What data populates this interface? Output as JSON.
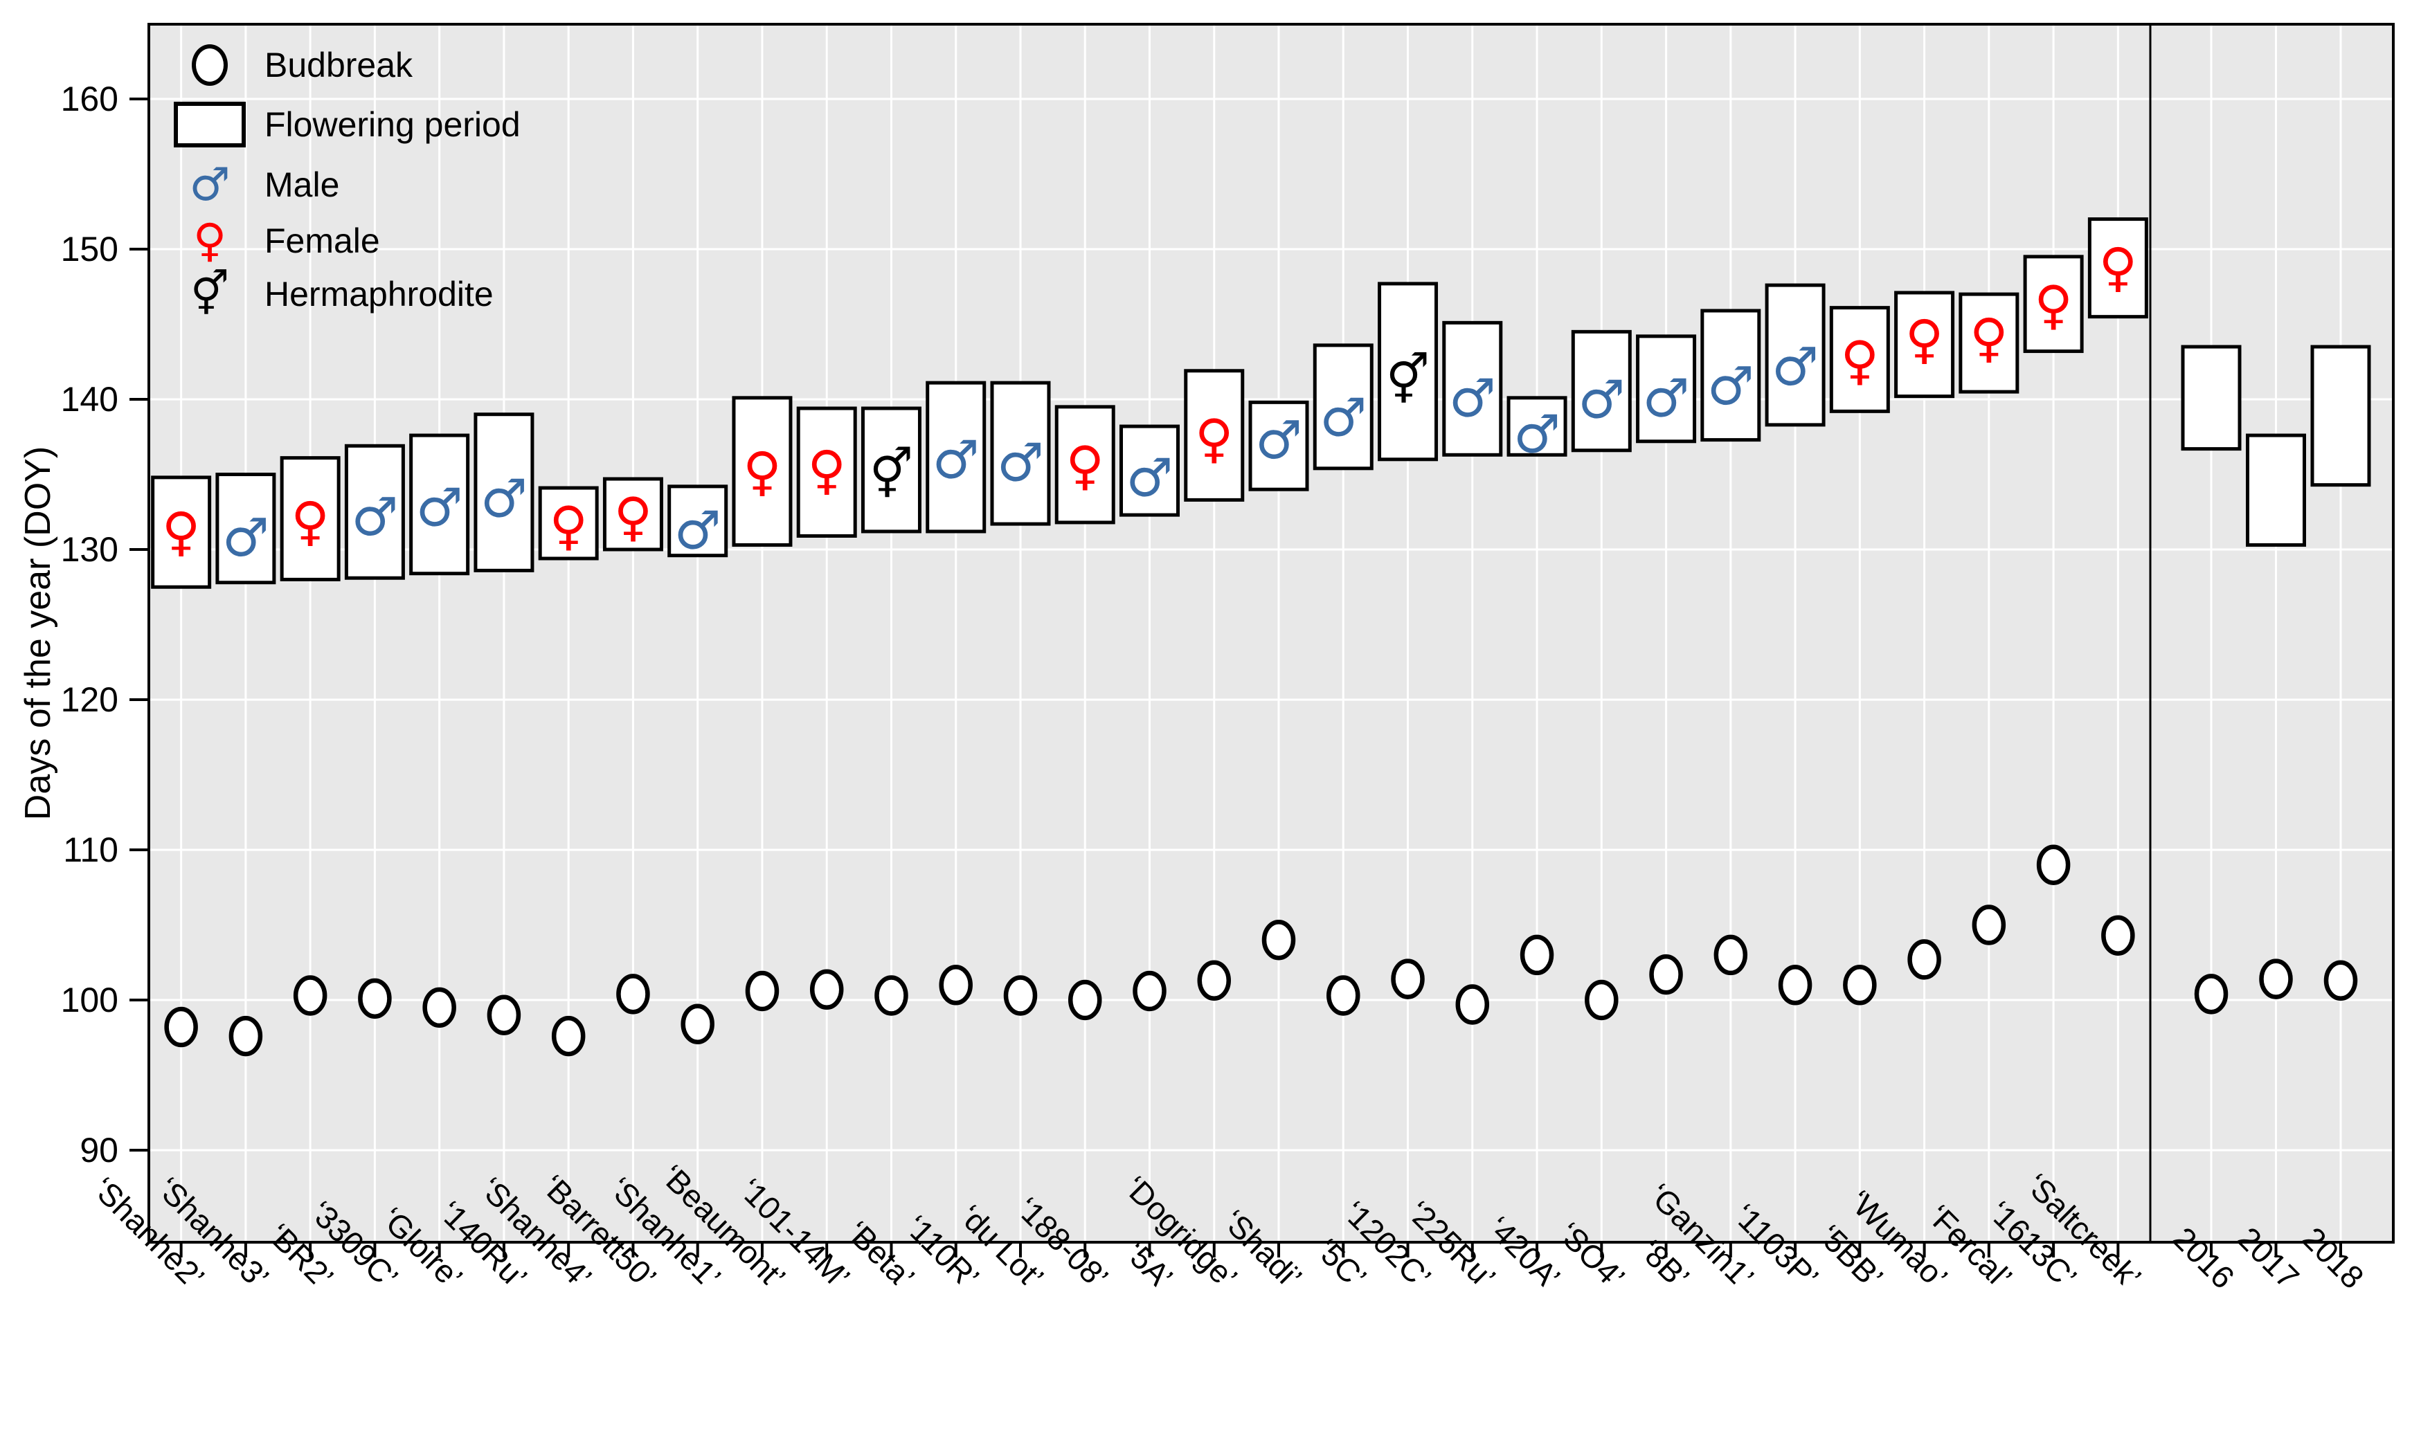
{
  "y_axis": {
    "title": "Days of the year (DOY)"
  },
  "legend": {
    "items": [
      {
        "symbol": "budbreak-circle",
        "label": "Budbreak",
        "glyph": ""
      },
      {
        "symbol": "flowering-rect",
        "label": "Flowering period",
        "glyph": ""
      },
      {
        "symbol": "male",
        "label": "Male",
        "glyph": "♂"
      },
      {
        "symbol": "female",
        "label": "Female",
        "glyph": "♀"
      },
      {
        "symbol": "hermaphrodite",
        "label": "Hermaphrodite",
        "glyph": "⚥"
      }
    ]
  },
  "colors": {
    "male": "#3A6CA6",
    "female": "#FF0000",
    "hermaphrodite": "#000000",
    "panel": "#E8E8E8",
    "grid": "#FFFFFF",
    "box_fill": "#FFFFFF",
    "stroke": "#000000"
  },
  "glyphs": {
    "male": "♂",
    "female": "♀",
    "hermaphrodite": "⚥"
  },
  "chart_data": {
    "type": "custom-flowering-phenology",
    "ylabel": "Days of the year (DOY)",
    "ylim": [
      84,
      165
    ],
    "yticks": [
      90,
      100,
      110,
      120,
      130,
      140,
      150,
      160
    ],
    "grid": true,
    "legend_position": "top-left-inside",
    "categories": [
      "‘Shanhe2’",
      "‘Shanhe3’",
      "‘BR2’",
      "‘3309C’",
      "‘Gloire’",
      "‘140Ru’",
      "‘Shanhe4’",
      "‘Barrett50’",
      "‘Shanhe1’",
      "‘Beaumont’",
      "‘101-14M’",
      "‘Beta’",
      "‘110R’",
      "‘du Lot’",
      "‘188-08’",
      "‘5A’",
      "‘Dogridge’",
      "‘Shadi’",
      "‘5C’",
      "‘1202C’",
      "‘225Ru’",
      "‘420A’",
      "‘SO4’",
      "‘8B’",
      "‘Ganzin1’",
      "‘1103P’",
      "‘5BB’",
      "‘Wumao’",
      "‘Fercal’",
      "‘1613C’",
      "‘Saltcreek’"
    ],
    "flowering_period": [
      [
        127.5,
        134.8
      ],
      [
        127.8,
        135.0
      ],
      [
        128.0,
        136.1
      ],
      [
        128.1,
        136.9
      ],
      [
        128.4,
        137.6
      ],
      [
        128.6,
        139.0
      ],
      [
        129.4,
        134.1
      ],
      [
        130.0,
        134.7
      ],
      [
        129.6,
        134.2
      ],
      [
        130.3,
        140.1
      ],
      [
        130.9,
        139.4
      ],
      [
        131.2,
        139.4
      ],
      [
        131.2,
        141.1
      ],
      [
        131.7,
        141.1
      ],
      [
        131.8,
        139.5
      ],
      [
        132.3,
        138.2
      ],
      [
        133.3,
        141.9
      ],
      [
        134.0,
        139.8
      ],
      [
        135.4,
        143.6
      ],
      [
        136.0,
        147.7
      ],
      [
        136.3,
        145.1
      ],
      [
        136.3,
        140.1
      ],
      [
        136.6,
        144.5
      ],
      [
        137.2,
        144.2
      ],
      [
        137.3,
        145.9
      ],
      [
        138.3,
        147.6
      ],
      [
        139.2,
        146.1
      ],
      [
        140.2,
        147.1
      ],
      [
        140.5,
        147.0
      ],
      [
        143.2,
        149.5
      ],
      [
        145.5,
        152.0
      ]
    ],
    "sex": [
      {
        "type": "female",
        "doy": 131.2
      },
      {
        "type": "male",
        "doy": 130.8
      },
      {
        "type": "female",
        "doy": 131.9
      },
      {
        "type": "male",
        "doy": 132.2
      },
      {
        "type": "male",
        "doy": 132.8
      },
      {
        "type": "male",
        "doy": 133.4
      },
      {
        "type": "female",
        "doy": 131.6
      },
      {
        "type": "female",
        "doy": 132.2
      },
      {
        "type": "male",
        "doy": 131.3
      },
      {
        "type": "female",
        "doy": 135.2
      },
      {
        "type": "female",
        "doy": 135.3
      },
      {
        "type": "hermaphrodite",
        "doy": 135.0
      },
      {
        "type": "male",
        "doy": 136.0
      },
      {
        "type": "male",
        "doy": 135.8
      },
      {
        "type": "female",
        "doy": 135.6
      },
      {
        "type": "male",
        "doy": 134.8
      },
      {
        "type": "female",
        "doy": 137.4
      },
      {
        "type": "male",
        "doy": 137.3
      },
      {
        "type": "male",
        "doy": 138.8
      },
      {
        "type": "hermaphrodite",
        "doy": 141.3
      },
      {
        "type": "male",
        "doy": 140.1
      },
      {
        "type": "male",
        "doy": 137.7
      },
      {
        "type": "male",
        "doy": 140.0
      },
      {
        "type": "male",
        "doy": 140.1
      },
      {
        "type": "male",
        "doy": 140.9
      },
      {
        "type": "male",
        "doy": 142.2
      },
      {
        "type": "female",
        "doy": 142.6
      },
      {
        "type": "female",
        "doy": 144.0
      },
      {
        "type": "female",
        "doy": 144.1
      },
      {
        "type": "female",
        "doy": 146.3
      },
      {
        "type": "female",
        "doy": 148.8
      }
    ],
    "budbreak": [
      98.2,
      97.6,
      100.3,
      100.1,
      99.5,
      99.0,
      97.6,
      100.4,
      98.4,
      100.6,
      100.7,
      100.3,
      101.0,
      100.3,
      100.0,
      100.6,
      101.3,
      104.0,
      100.3,
      101.4,
      99.7,
      103.0,
      100.0,
      101.7,
      103.0,
      101.0,
      101.0,
      102.7,
      105.0,
      109.0,
      104.3
    ],
    "year_panel": {
      "categories": [
        "2016",
        "2017",
        "2018"
      ],
      "flowering_period": [
        [
          136.7,
          143.5
        ],
        [
          130.3,
          137.6
        ],
        [
          134.3,
          143.5
        ]
      ],
      "budbreak": [
        100.4,
        101.4,
        101.3
      ]
    }
  }
}
